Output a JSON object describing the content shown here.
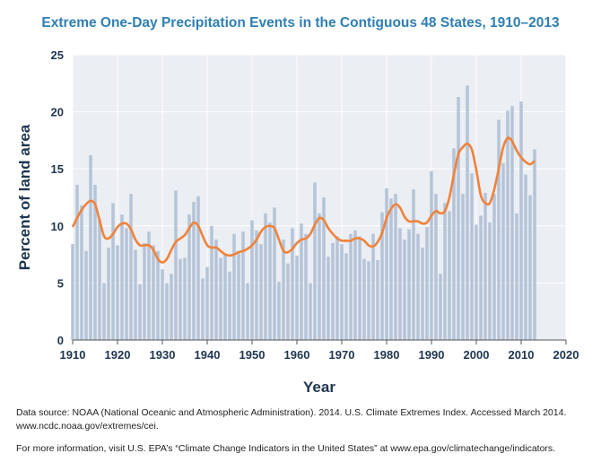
{
  "chart_data": {
    "type": "bar",
    "title": "Extreme One-Day Precipitation Events in the Contiguous 48 States, 1910–2013",
    "xlabel": "Year",
    "ylabel": "Percent of land area",
    "xlim": [
      1910,
      2020
    ],
    "ylim": [
      0,
      25
    ],
    "xticks": [
      "1910",
      "1920",
      "1930",
      "1940",
      "1950",
      "1960",
      "1970",
      "1980",
      "1990",
      "2000",
      "2010",
      "2020"
    ],
    "yticks": [
      "0",
      "5",
      "10",
      "15",
      "20",
      "25"
    ],
    "grid": true,
    "bar_color": "#b5c4d8",
    "line_color": "#f0823a",
    "years": [
      1910,
      1911,
      1912,
      1913,
      1914,
      1915,
      1916,
      1917,
      1918,
      1919,
      1920,
      1921,
      1922,
      1923,
      1924,
      1925,
      1926,
      1927,
      1928,
      1929,
      1930,
      1931,
      1932,
      1933,
      1934,
      1935,
      1936,
      1937,
      1938,
      1939,
      1940,
      1941,
      1942,
      1943,
      1944,
      1945,
      1946,
      1947,
      1948,
      1949,
      1950,
      1951,
      1952,
      1953,
      1954,
      1955,
      1956,
      1957,
      1958,
      1959,
      1960,
      1961,
      1962,
      1963,
      1964,
      1965,
      1966,
      1967,
      1968,
      1969,
      1970,
      1971,
      1972,
      1973,
      1974,
      1975,
      1976,
      1977,
      1978,
      1979,
      1980,
      1981,
      1982,
      1983,
      1984,
      1985,
      1986,
      1987,
      1988,
      1989,
      1990,
      1991,
      1992,
      1993,
      1994,
      1995,
      1996,
      1997,
      1998,
      1999,
      2000,
      2001,
      2002,
      2003,
      2004,
      2005,
      2006,
      2007,
      2008,
      2009,
      2010,
      2011,
      2012,
      2013
    ],
    "series": [
      {
        "type": "bar",
        "values": [
          8.4,
          13.6,
          11.8,
          7.8,
          16.2,
          13.6,
          10.6,
          5.0,
          8.1,
          12.0,
          8.3,
          11.0,
          9.8,
          12.8,
          7.9,
          4.9,
          8.5,
          9.5,
          8.3,
          7.8,
          6.2,
          5.0,
          5.8,
          13.1,
          7.1,
          7.2,
          11.0,
          12.1,
          12.6,
          5.4,
          6.4,
          10.0,
          8.8,
          7.2,
          7.6,
          6.0,
          9.3,
          7.8,
          9.5,
          5.0,
          10.5,
          9.6,
          8.4,
          11.1,
          10.3,
          11.6,
          5.1,
          8.8,
          6.7,
          9.8,
          7.4,
          10.2,
          9.3,
          5.0,
          13.8,
          11.1,
          12.5,
          7.3,
          8.5,
          9.1,
          8.4,
          7.6,
          9.3,
          9.6,
          9.1,
          7.1,
          6.9,
          9.3,
          7.0,
          11.2,
          13.3,
          12.4,
          12.8,
          9.8,
          8.8,
          9.7,
          13.2,
          9.3,
          8.1,
          9.9,
          14.8,
          12.8,
          5.8,
          12.0,
          11.3,
          16.8,
          21.3,
          12.8,
          22.3,
          14.6,
          10.1,
          10.9,
          12.9,
          10.3,
          12.8,
          19.3,
          15.5,
          20.1,
          20.5,
          11.1,
          20.9,
          14.5,
          12.7,
          16.7
        ]
      },
      {
        "type": "line",
        "values": [
          9.9,
          10.7,
          11.4,
          11.9,
          12.2,
          11.9,
          10.5,
          9.1,
          8.9,
          9.3,
          9.9,
          10.2,
          10.2,
          9.7,
          8.8,
          8.3,
          8.3,
          8.3,
          7.9,
          7.1,
          6.8,
          7.1,
          7.9,
          8.6,
          8.9,
          9.2,
          9.8,
          10.3,
          10.0,
          9.1,
          8.3,
          8.1,
          8.1,
          7.8,
          7.5,
          7.4,
          7.5,
          7.7,
          7.8,
          8.0,
          8.3,
          8.8,
          9.5,
          9.9,
          10.0,
          9.8,
          8.8,
          7.8,
          7.7,
          8.0,
          8.5,
          8.8,
          8.9,
          9.3,
          10.1,
          10.7,
          10.5,
          9.8,
          9.3,
          8.9,
          8.7,
          8.7,
          8.7,
          8.9,
          8.9,
          8.7,
          8.3,
          8.2,
          8.6,
          9.4,
          10.7,
          11.5,
          11.9,
          11.6,
          10.8,
          10.4,
          10.4,
          10.4,
          10.2,
          10.3,
          10.9,
          11.3,
          11.1,
          11.3,
          12.5,
          14.5,
          16.3,
          16.9,
          17.2,
          16.7,
          14.9,
          12.7,
          12.0,
          12.0,
          13.2,
          15.0,
          16.9,
          17.7,
          17.4,
          16.6,
          16.0,
          15.6,
          15.4,
          15.7
        ]
      }
    ]
  },
  "footnote": {
    "source": "Data source: NOAA (National Oceanic and Atmospheric Administration). 2014. U.S. Climate Extremes Index. Accessed March 2014. www.ncdc.noaa.gov/extremes/cei.",
    "more_info": "For more information, visit U.S. EPA’s “Climate Change Indicators in the United States” at www.epa.gov/climatechange/indicators."
  }
}
